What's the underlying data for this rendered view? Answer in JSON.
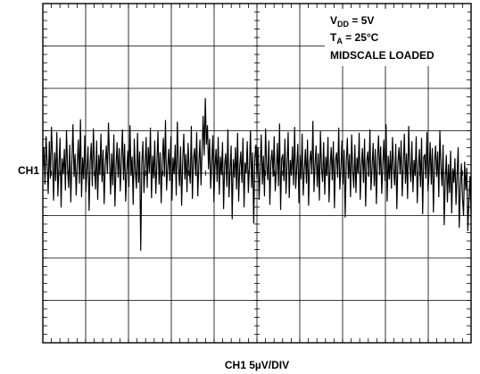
{
  "chart_data": {
    "type": "line",
    "title": "",
    "xlabel": "CH1 5µV/DIV",
    "channel_label": "CH1",
    "grid": true,
    "grid_divisions": {
      "x": 10,
      "y": 8
    },
    "minor_ticks_per_division": 5,
    "ylim": [
      -20,
      20
    ],
    "y_units": "µV",
    "annotations": {
      "vdd": {
        "prefix": "V",
        "sub": "DD",
        "suffix": " = 5V"
      },
      "ta": {
        "prefix": "T",
        "sub": "A",
        "suffix": " = 25°C"
      },
      "loaded": "MIDSCALE LOADED"
    },
    "series": [
      {
        "values": [
          0.2,
          2.8,
          -1.5,
          4.1,
          1.0,
          -2.6,
          3.5,
          -0.8,
          5.2,
          1.8,
          -3.4,
          2.2,
          -1.1,
          4.6,
          -2.9,
          0.7,
          3.9,
          -4.2,
          1.5,
          -0.3,
          2.6,
          -2.2,
          4.8,
          0.4,
          -1.9,
          3.1,
          -3.6,
          1.2,
          5.5,
          -0.6,
          2.0,
          -2.8,
          0.9,
          3.7,
          -1.4,
          6.1,
          -3.0,
          1.6,
          -0.9,
          4.2,
          -2.4,
          0.3,
          2.9,
          -4.6,
          1.1,
          3.3,
          -1.7,
          5.0,
          0.6,
          -2.1,
          3.6,
          -3.3,
          1.9,
          -0.4,
          4.4,
          -1.2,
          2.5,
          -3.8,
          0.8,
          3.0,
          -0.2,
          5.7,
          1.3,
          -2.7,
          2.1,
          -1.6,
          4.3,
          -4.1,
          0.5,
          3.4,
          -0.7,
          2.7,
          -2.3,
          1.4,
          4.9,
          -1.0,
          3.2,
          -3.5,
          0.1,
          2.4,
          -1.8,
          5.4,
          -0.5,
          1.7,
          -3.9,
          3.8,
          0.0,
          -2.0,
          4.5,
          -1.3,
          2.3,
          -9.3,
          1.0,
          3.5,
          -2.5,
          0.6,
          4.0,
          -1.9,
          2.8,
          -0.1,
          5.1,
          -3.1,
          1.8,
          -0.8,
          3.6,
          -2.6,
          0.9,
          4.7,
          -1.5,
          2.2,
          -3.7,
          1.3,
          3.9,
          -0.6,
          6.0,
          -2.2,
          0.4,
          2.6,
          -1.1,
          4.1,
          -3.4,
          1.6,
          -0.3,
          3.1,
          -2.8,
          5.8,
          0.7,
          -1.7,
          2.9,
          -4.0,
          1.2,
          4.4,
          -0.9,
          2.0,
          -2.4,
          3.3,
          0.2,
          -1.4,
          5.3,
          -3.2,
          1.5,
          2.7,
          -0.5,
          4.6,
          -2.9,
          0.8,
          3.7,
          -1.6,
          2.4,
          6.5,
          1.9,
          8.6,
          3.2,
          5.4,
          0.3,
          3.8,
          -2.0,
          1.1,
          4.2,
          -3.6,
          0.5,
          2.6,
          -1.2,
          4.0,
          -2.7,
          1.7,
          -0.4,
          3.4,
          -4.4,
          0.9,
          2.1,
          -1.8,
          4.9,
          -3.0,
          0.1,
          3.0,
          -5.6,
          1.4,
          -0.7,
          2.8,
          -2.1,
          4.5,
          -3.5,
          0.6,
          2.3,
          -1.3,
          3.9,
          -4.2,
          1.0,
          -0.2,
          3.5,
          -2.5,
          0.4,
          4.8,
          -1.9,
          2.2,
          -6.1,
          1.6,
          3.1,
          -0.8,
          2.7,
          -3.3,
          0.3,
          4.3,
          -1.5,
          1.8,
          -2.9,
          5.0,
          0.7,
          -1.0,
          3.6,
          -3.9,
          1.2,
          2.5,
          -0.6,
          4.1,
          -2.3,
          0.0,
          3.3,
          -1.7,
          5.6,
          -4.5,
          1.5,
          2.0,
          -1.1,
          3.8,
          -2.6,
          0.8,
          4.6,
          -3.1,
          1.3,
          -0.4,
          2.9,
          -1.6,
          5.2,
          -2.0,
          0.5,
          3.2,
          -3.7,
          1.9,
          -0.9,
          4.4,
          -2.8,
          0.2,
          2.6,
          -1.4,
          3.7,
          -4.0,
          1.1,
          2.4,
          -0.3,
          5.9,
          -2.4,
          0.9,
          3.0,
          -1.8,
          2.1,
          -3.4,
          4.7,
          0.4,
          -1.2,
          3.4,
          -2.7,
          1.7,
          -0.5,
          4.0,
          -3.6,
          0.6,
          2.8,
          -1.0,
          3.5,
          -4.3,
          1.4,
          2.2,
          -0.7,
          5.1,
          -2.1,
          0.3,
          3.6,
          -1.5,
          2.5,
          -5.4,
          1.0,
          3.9,
          -0.8,
          2.0,
          -3.0,
          4.3,
          0.1,
          -1.9,
          3.1,
          -2.5,
          1.6,
          -0.2,
          4.5,
          -3.3,
          0.7,
          2.7,
          -1.3,
          3.8,
          -4.1,
          1.2,
          2.3,
          -0.6,
          4.9,
          -2.2,
          0.5,
          3.3,
          -1.7,
          2.6,
          -3.8,
          1.5,
          4.2,
          -0.4,
          2.9,
          -2.6,
          0.9,
          3.7,
          -1.1,
          5.5,
          -3.5,
          1.8,
          -0.9,
          2.4,
          -2.0,
          4.0,
          0.2,
          -1.6,
          3.2,
          -4.4,
          1.1,
          2.8,
          -0.3,
          3.6,
          -2.9,
          0.6,
          4.4,
          -1.4,
          2.1,
          -3.2,
          5.3,
          0.8,
          -1.2,
          3.5,
          -2.4,
          1.3,
          -0.5,
          4.1,
          -3.7,
          0.4,
          2.6,
          -1.8,
          3.9,
          -5.0,
          1.7,
          2.0,
          -0.8,
          4.6,
          -2.3,
          0.0,
          3.4,
          -1.5,
          2.7,
          -4.8,
          1.2,
          3.0,
          -0.6,
          2.3,
          -3.0,
          4.8,
          0.5,
          -1.7,
          3.1,
          -6.3,
          -1.0,
          1.9,
          -3.6,
          0.8,
          -2.5,
          2.4,
          -4.9,
          0.3,
          -1.3,
          1.5,
          -3.9,
          -0.4,
          2.8,
          -6.6,
          -1.8,
          0.9,
          -3.1,
          -5.2,
          1.1,
          -2.2,
          0.4,
          -7.0,
          -3.4,
          -0.6,
          -5.5
        ]
      }
    ]
  }
}
